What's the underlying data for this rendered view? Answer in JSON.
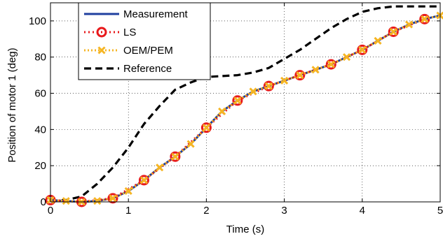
{
  "chart_data": {
    "type": "line",
    "title": "",
    "xlabel": "Time (s)",
    "ylabel": "Position of motor 1 (deg)",
    "xlim": [
      0,
      5
    ],
    "ylim": [
      0,
      110
    ],
    "xticks": [
      0,
      1,
      2,
      3,
      4,
      5
    ],
    "yticks": [
      0,
      20,
      40,
      60,
      80,
      100
    ],
    "grid": true,
    "legend_position": "top-left",
    "series": [
      {
        "name": "Measurement",
        "style": "solid",
        "color": "#1f3f9f",
        "x": [
          0,
          0.2,
          0.4,
          0.6,
          0.8,
          1.0,
          1.2,
          1.4,
          1.6,
          1.8,
          2.0,
          2.2,
          2.4,
          2.6,
          2.8,
          3.0,
          3.2,
          3.4,
          3.6,
          3.8,
          4.0,
          4.2,
          4.4,
          4.6,
          4.8,
          5.0
        ],
        "y": [
          1,
          0.5,
          0,
          0.5,
          2,
          6,
          12,
          19,
          25,
          32,
          41,
          50,
          56,
          61,
          64,
          67,
          70,
          73,
          76,
          80,
          84,
          89,
          94,
          98,
          101,
          103
        ]
      },
      {
        "name": "LS",
        "style": "dotted-circle",
        "color": "#e8191b",
        "x": [
          0,
          0.4,
          0.8,
          1.2,
          1.6,
          2.0,
          2.4,
          2.8,
          3.2,
          3.6,
          4.0,
          4.4,
          4.8
        ],
        "y": [
          1,
          0,
          2,
          12,
          25,
          41,
          56,
          64,
          70,
          76,
          84,
          94,
          101
        ]
      },
      {
        "name": "OEM/PEM",
        "style": "dotted-x",
        "color": "#f5b523",
        "x": [
          0,
          0.2,
          0.4,
          0.6,
          0.8,
          1.0,
          1.2,
          1.4,
          1.6,
          1.8,
          2.0,
          2.2,
          2.4,
          2.6,
          2.8,
          3.0,
          3.2,
          3.4,
          3.6,
          3.8,
          4.0,
          4.2,
          4.4,
          4.6,
          4.8,
          5.0
        ],
        "y": [
          1,
          0.5,
          0,
          0.5,
          2,
          6,
          12,
          19,
          25,
          32,
          41,
          50,
          56,
          61,
          64,
          67,
          70,
          73,
          76,
          80,
          84,
          89,
          94,
          98,
          101,
          103
        ]
      },
      {
        "name": "Reference",
        "style": "dashed",
        "color": "#000000",
        "x": [
          0,
          0.2,
          0.4,
          0.6,
          0.8,
          1.0,
          1.2,
          1.4,
          1.6,
          1.8,
          2.0,
          2.2,
          2.4,
          2.6,
          2.8,
          3.0,
          3.2,
          3.4,
          3.6,
          3.8,
          4.0,
          4.2,
          4.4,
          4.6,
          4.8,
          5.0
        ],
        "y": [
          0.5,
          1,
          3,
          10,
          19,
          30,
          43,
          53,
          62,
          66,
          69,
          69.5,
          70,
          71.5,
          74,
          79,
          84,
          90,
          96,
          101,
          105,
          107,
          108,
          108,
          108,
          108
        ]
      }
    ]
  }
}
